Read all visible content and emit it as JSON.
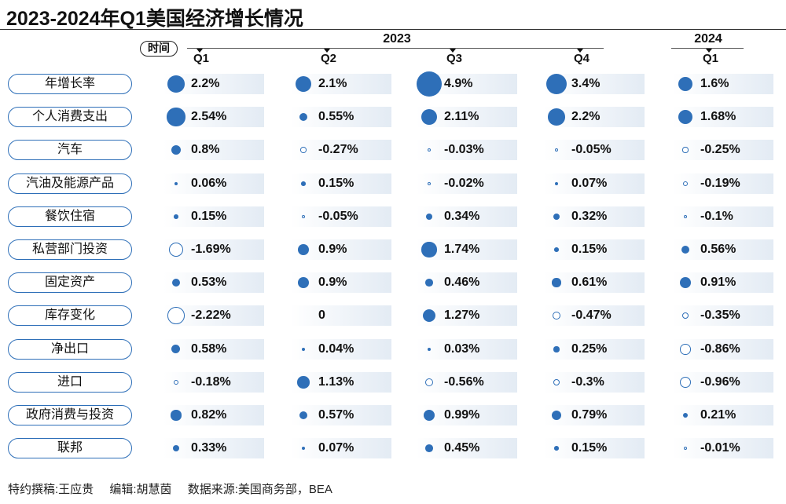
{
  "title": "2023-2024年Q1美国经济增长情况",
  "header": {
    "time_label": "时间",
    "years": [
      "2023",
      "2024"
    ],
    "quarters": [
      "Q1",
      "Q2",
      "Q3",
      "Q4",
      "Q1"
    ]
  },
  "colors": {
    "positive": "#2e6fb8",
    "negative_outline": "#2e6fb8",
    "cell_band": "#e3ebf4"
  },
  "chart_data": {
    "type": "table",
    "title": "2023-2024年Q1美国经济增长情况",
    "columns": [
      "2023 Q1",
      "2023 Q2",
      "2023 Q3",
      "2023 Q4",
      "2024 Q1"
    ],
    "rows": [
      {
        "name": "年增长率",
        "values": [
          2.2,
          2.1,
          4.9,
          3.4,
          1.6
        ],
        "labels": [
          "2.2%",
          "2.1%",
          "4.9%",
          "3.4%",
          "1.6%"
        ]
      },
      {
        "name": "个人消费支出",
        "values": [
          2.54,
          0.55,
          2.11,
          2.2,
          1.68
        ],
        "labels": [
          "2.54%",
          "0.55%",
          "2.11%",
          "2.2%",
          "1.68%"
        ]
      },
      {
        "name": "汽车",
        "values": [
          0.8,
          -0.27,
          -0.03,
          -0.05,
          -0.25
        ],
        "labels": [
          "0.8%",
          "-0.27%",
          "-0.03%",
          "-0.05%",
          "-0.25%"
        ]
      },
      {
        "name": "汽油及能源产品",
        "values": [
          0.06,
          0.15,
          -0.02,
          0.07,
          -0.19
        ],
        "labels": [
          "0.06%",
          "0.15%",
          "-0.02%",
          "0.07%",
          "-0.19%"
        ]
      },
      {
        "name": "餐饮住宿",
        "values": [
          0.15,
          -0.05,
          0.34,
          0.32,
          -0.1
        ],
        "labels": [
          "0.15%",
          "-0.05%",
          "0.34%",
          "0.32%",
          "-0.1%"
        ]
      },
      {
        "name": "私营部门投资",
        "values": [
          -1.69,
          0.9,
          1.74,
          0.15,
          0.56
        ],
        "labels": [
          "-1.69%",
          "0.9%",
          "1.74%",
          "0.15%",
          "0.56%"
        ]
      },
      {
        "name": "固定资产",
        "values": [
          0.53,
          0.9,
          0.46,
          0.61,
          0.91
        ],
        "labels": [
          "0.53%",
          "0.9%",
          "0.46%",
          "0.61%",
          "0.91%"
        ]
      },
      {
        "name": "库存变化",
        "values": [
          -2.22,
          0,
          1.27,
          -0.47,
          -0.35
        ],
        "labels": [
          "-2.22%",
          "0",
          "1.27%",
          "-0.47%",
          "-0.35%"
        ]
      },
      {
        "name": "净出口",
        "values": [
          0.58,
          0.04,
          0.03,
          0.25,
          -0.86
        ],
        "labels": [
          "0.58%",
          "0.04%",
          "0.03%",
          "0.25%",
          "-0.86%"
        ]
      },
      {
        "name": "进口",
        "values": [
          -0.18,
          1.13,
          -0.56,
          -0.3,
          -0.96
        ],
        "labels": [
          "-0.18%",
          "1.13%",
          "-0.56%",
          "-0.3%",
          "-0.96%"
        ]
      },
      {
        "name": "政府消费与投资",
        "values": [
          0.82,
          0.57,
          0.99,
          0.79,
          0.21
        ],
        "labels": [
          "0.82%",
          "0.57%",
          "0.99%",
          "0.79%",
          "0.21%"
        ]
      },
      {
        "name": "联邦",
        "values": [
          0.33,
          0.07,
          0.45,
          0.15,
          -0.01
        ],
        "labels": [
          "0.33%",
          "0.07%",
          "0.45%",
          "0.15%",
          "-0.01%"
        ]
      }
    ]
  },
  "footer": {
    "author": "特约撰稿:王应贵",
    "editor": "编辑:胡慧茵",
    "source": "数据来源:美国商务部，BEA"
  }
}
